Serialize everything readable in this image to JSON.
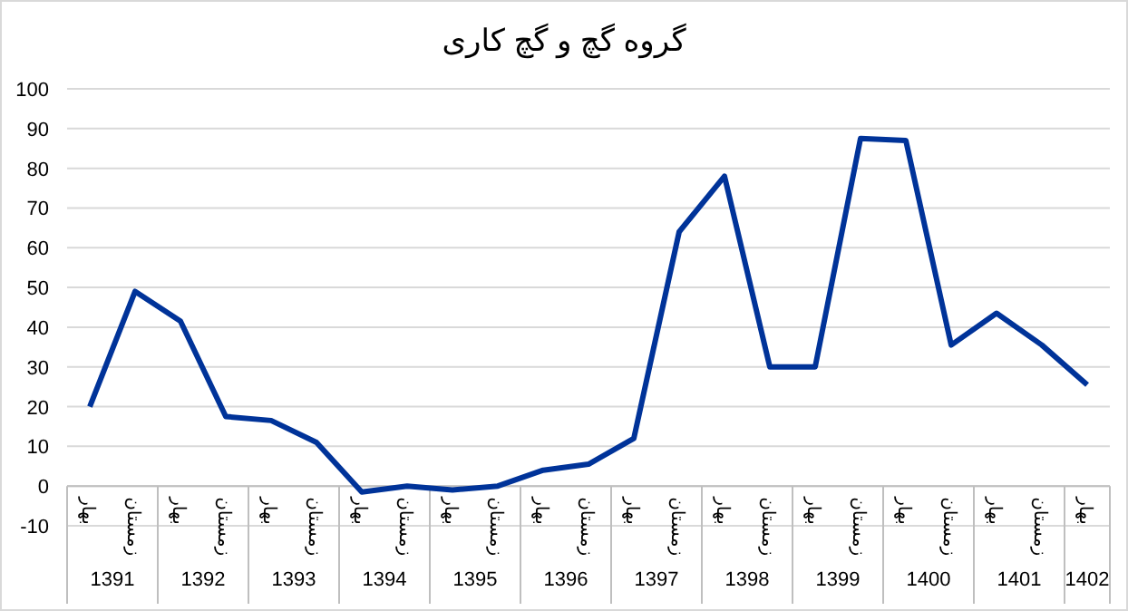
{
  "chart_data": {
    "type": "line",
    "title": "گروه گچ و گچ کاری",
    "categories": [
      "بهار",
      "زمستان",
      "بهار",
      "زمستان",
      "بهار",
      "زمستان",
      "بهار",
      "زمستان",
      "بهار",
      "زمستان",
      "بهار",
      "زمستان",
      "بهار",
      "زمستان",
      "بهار",
      "زمستان",
      "بهار",
      "زمستان",
      "بهار",
      "زمستان",
      "بهار",
      "زمستان",
      "بهار"
    ],
    "series": [
      {
        "color": "#003399",
        "values": [
          20,
          49,
          41.5,
          17.5,
          16.5,
          11,
          -1.5,
          0,
          -1,
          0,
          4,
          5.5,
          12,
          64,
          78,
          30,
          30,
          87.5,
          87,
          35.5,
          43.5,
          35.5,
          25.5
        ]
      }
    ],
    "annotations": [
      "1391",
      "1392",
      "1393",
      "1394",
      "1395",
      "1396",
      "1397",
      "1398",
      "1399",
      "1400",
      "1401",
      "1402"
    ],
    "ylim": [
      -10,
      100
    ],
    "yticks": [
      -10,
      0,
      10,
      20,
      30,
      40,
      50,
      60,
      70,
      80,
      90,
      100
    ],
    "grid": "y",
    "marker": "none",
    "line_style": "solid"
  }
}
